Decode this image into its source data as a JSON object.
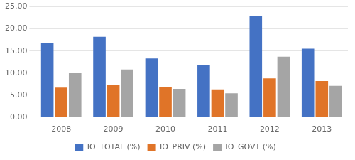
{
  "chart_data": {
    "type": "bar",
    "categories": [
      "2008",
      "2009",
      "2010",
      "2011",
      "2012",
      "2013"
    ],
    "series": [
      {
        "name": "IO_TOTAL (%)",
        "color": "#4472C4",
        "values": [
          16.8,
          18.2,
          13.3,
          11.8,
          23.0,
          15.5
        ]
      },
      {
        "name": "IO_PRIV (%)",
        "color": "#E07428",
        "values": [
          6.7,
          7.3,
          6.9,
          6.3,
          8.8,
          8.2
        ]
      },
      {
        "name": "IO_GOVT (%)",
        "color": "#A5A5A5",
        "values": [
          10.0,
          10.8,
          6.4,
          5.4,
          13.7,
          7.1
        ]
      }
    ],
    "ylim": [
      0,
      25
    ],
    "yticks": [
      {
        "value": 0,
        "label": "0.00"
      },
      {
        "value": 5,
        "label": "5.00"
      },
      {
        "value": 10,
        "label": "10.00"
      },
      {
        "value": 15,
        "label": "15.00"
      },
      {
        "value": 20,
        "label": "20.00"
      },
      {
        "value": 25,
        "label": "25.00"
      }
    ],
    "grid": true,
    "legend": "bottom"
  }
}
